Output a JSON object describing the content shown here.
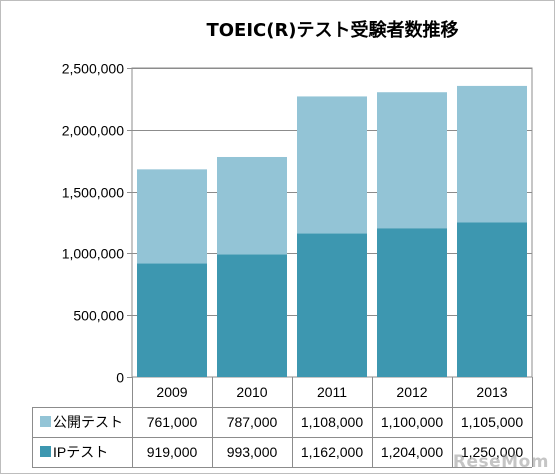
{
  "chart_data": {
    "type": "bar",
    "stacked": true,
    "title": "TOEIC(R)テスト受験者数推移",
    "categories": [
      "2009",
      "2010",
      "2011",
      "2012",
      "2013"
    ],
    "series": [
      {
        "name": "IPテスト",
        "values": [
          919000,
          993000,
          1162000,
          1204000,
          1250000
        ],
        "labels": [
          "919,000",
          "993,000",
          "1,162,000",
          "1,204,000",
          "1,250,000"
        ],
        "color": "#3d97b0"
      },
      {
        "name": "公開テスト",
        "values": [
          761000,
          787000,
          1108000,
          1100000,
          1105000
        ],
        "labels": [
          "761,000",
          "787,000",
          "1,108,000",
          "1,100,000",
          "1,105,000"
        ],
        "color": "#93c4d6"
      }
    ],
    "ylim": [
      0,
      2500000
    ],
    "yticks": [
      0,
      500000,
      1000000,
      1500000,
      2000000,
      2500000
    ],
    "ytick_labels": [
      "0",
      "500,000",
      "1,000,000",
      "1,500,000",
      "2,000,000",
      "2,500,000"
    ],
    "grid": true,
    "legend": "data-table"
  },
  "watermark": "ReseMom"
}
